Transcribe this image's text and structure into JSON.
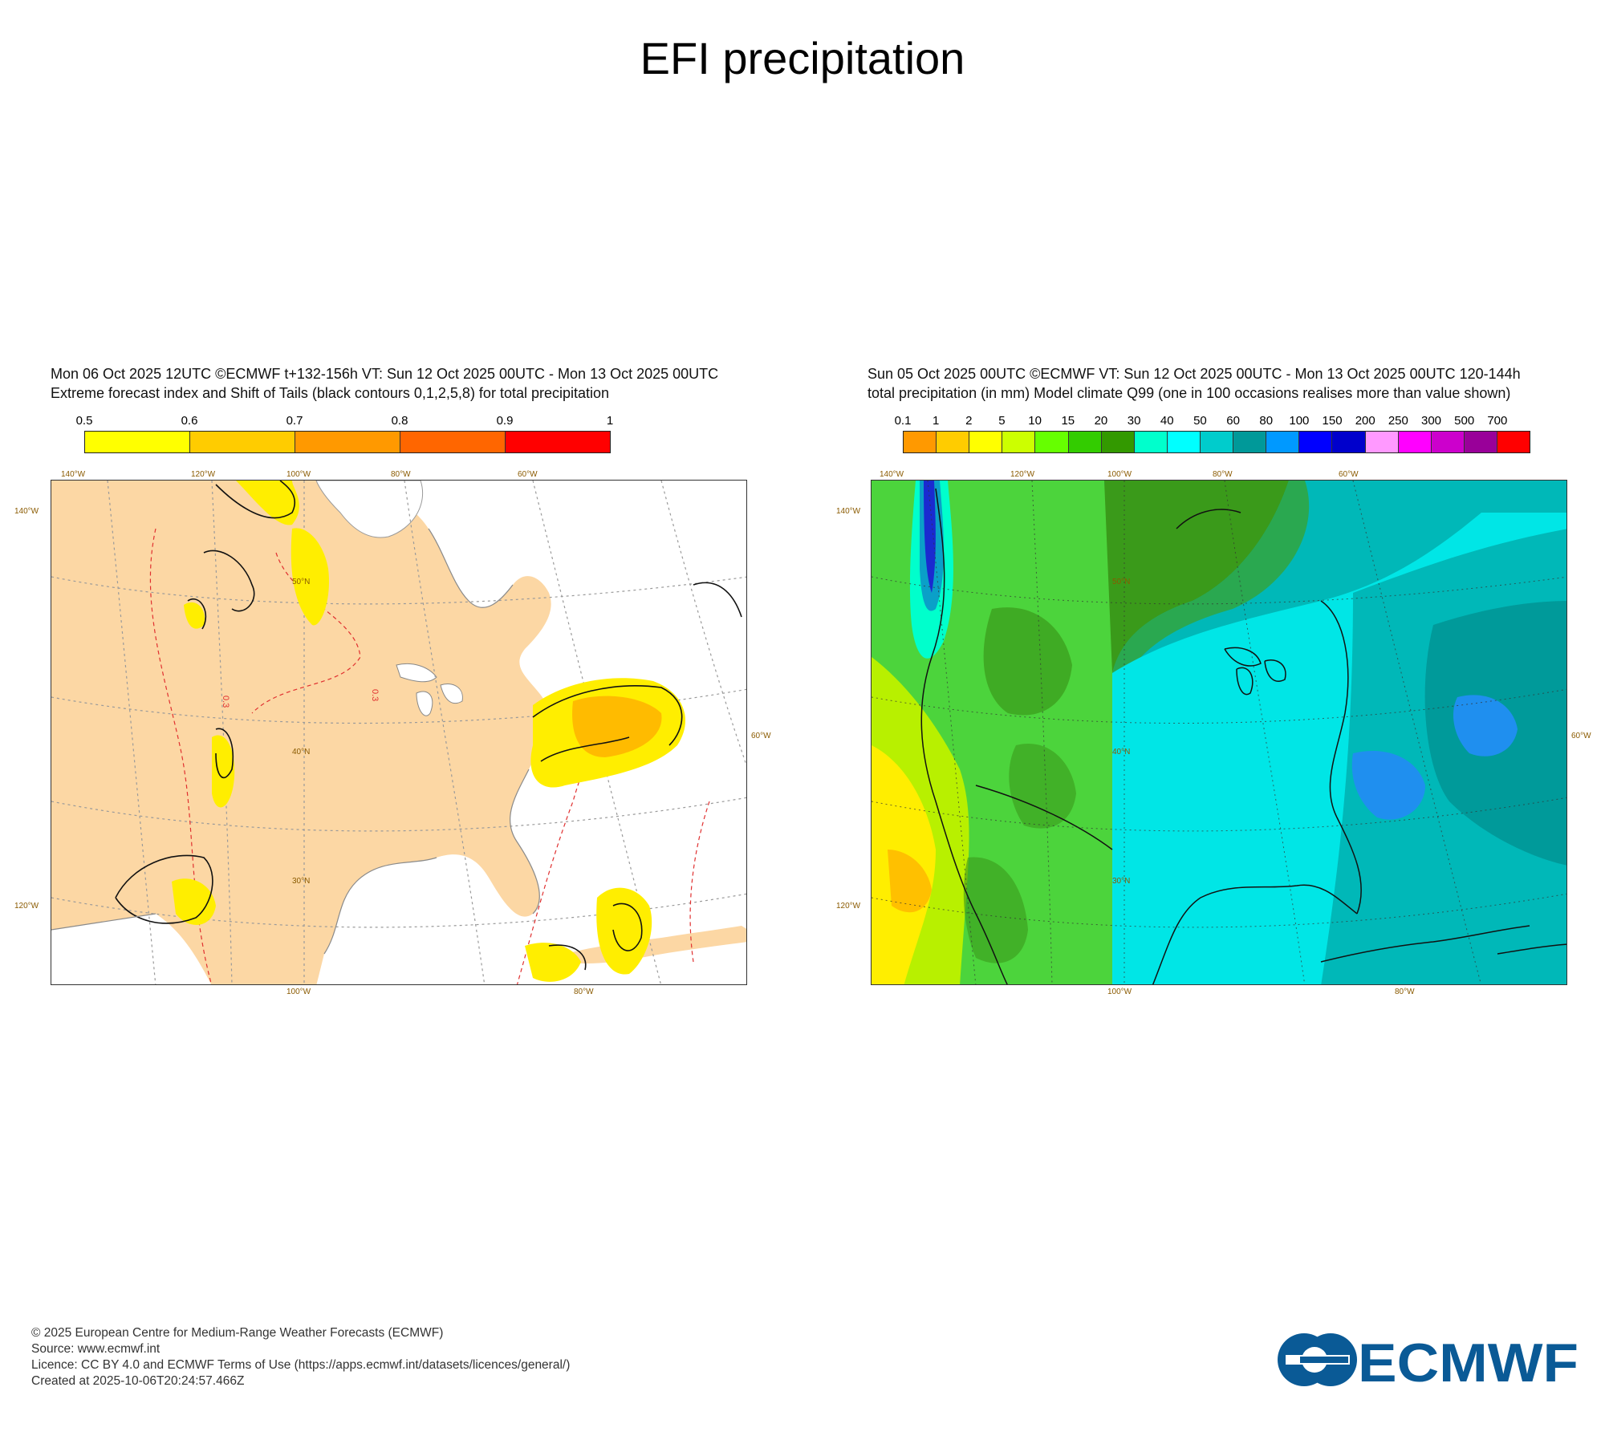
{
  "title": "EFI precipitation",
  "panels": [
    {
      "header_line1": "Mon 06 Oct 2025 12UTC ©ECMWF t+132-156h  VT: Sun 12 Oct 2025 00UTC - Mon 13 Oct 2025 00UTC",
      "header_line2": "Extreme forecast index and Shift of Tails (black contours 0,1,2,5,8) for total precipitation",
      "colorbar_labels": [
        "0.5",
        "0.6",
        "0.7",
        "0.8",
        "0.9",
        "1"
      ],
      "colorbar_colors": [
        "#ffff00",
        "#ffcc00",
        "#ff9900",
        "#ff6600",
        "#ff0000"
      ],
      "contour_label": "0.3",
      "lon_labels_top": [
        "140°W",
        "120°W",
        "100°W",
        "80°W",
        "60°W"
      ],
      "lon_labels_bottom": [
        "100°W",
        "80°W"
      ],
      "lat_labels_left": [
        "140°W",
        "120°W"
      ],
      "lat_labels_right": [
        "60°W"
      ],
      "lat_labels_inner": [
        "50°N",
        "40°N",
        "30°N"
      ]
    },
    {
      "header_line1": "Sun 05 Oct 2025 00UTC ©ECMWF VT: Sun 12 Oct 2025 00UTC - Mon 13 Oct 2025 00UTC   120-144h",
      "header_line2": "total precipitation (in mm)  Model climate Q99 (one in 100 occasions realises more than value shown)",
      "colorbar_labels": [
        "0.1",
        "1",
        "2",
        "5",
        "10",
        "15",
        "20",
        "30",
        "40",
        "50",
        "60",
        "80",
        "100",
        "150",
        "200",
        "250",
        "300",
        "500",
        "700"
      ],
      "colorbar_colors": [
        "#ff9900",
        "#ffcc00",
        "#ffff00",
        "#ccff00",
        "#66ff00",
        "#33cc00",
        "#339900",
        "#00ffcc",
        "#00ffff",
        "#00cccc",
        "#009999",
        "#0099ff",
        "#0000ff",
        "#0000cc",
        "#ff99ff",
        "#ff00ff",
        "#cc00cc",
        "#990099",
        "#ff0000"
      ],
      "lon_labels_top": [
        "140°W",
        "120°W",
        "100°W",
        "80°W",
        "60°W"
      ],
      "lon_labels_bottom": [
        "100°W",
        "80°W"
      ],
      "lat_labels_left": [
        "140°W",
        "120°W"
      ],
      "lat_labels_right": [
        "60°W"
      ],
      "lat_labels_inner": [
        "50°N",
        "40°N",
        "30°N"
      ]
    }
  ],
  "footer": {
    "line1": "© 2025 European Centre for Medium-Range Weather Forecasts (ECMWF)",
    "line2": "Source: www.ecmwf.int",
    "line3": "Licence: CC BY 4.0 and ECMWF Terms of Use (https://apps.ecmwf.int/datasets/licences/general/)",
    "line4": "Created at 2025-10-06T20:24:57.466Z"
  },
  "logo_text": "ECMWF",
  "brand_color": "#0a5a96"
}
